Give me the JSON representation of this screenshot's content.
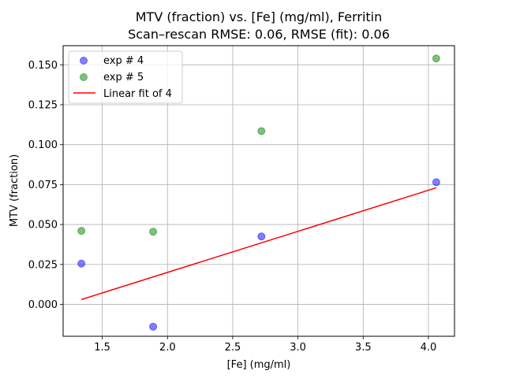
{
  "chart_data": {
    "type": "scatter",
    "title_line1": "MTV (fraction) vs. [Fe] (mg/ml), Ferritin",
    "title_line2": "Scan–rescan RMSE: 0.06, RMSE (fit): 0.06",
    "xlabel": "[Fe] (mg/ml)",
    "ylabel": "MTV (fraction)",
    "xlim": [
      1.2,
      4.2
    ],
    "ylim": [
      -0.02,
      0.162
    ],
    "xticks": [
      1.5,
      2.0,
      2.5,
      3.0,
      3.5,
      4.0
    ],
    "xtick_labels": [
      "1.5",
      "2.0",
      "2.5",
      "3.0",
      "3.5",
      "4.0"
    ],
    "yticks": [
      0.0,
      0.025,
      0.05,
      0.075,
      0.1,
      0.125,
      0.15
    ],
    "ytick_labels": [
      "0.000",
      "0.025",
      "0.050",
      "0.075",
      "0.100",
      "0.125",
      "0.150"
    ],
    "grid": true,
    "legend_position": "top-left",
    "series": [
      {
        "name": "exp # 4",
        "kind": "scatter",
        "color": "#0000ff",
        "x": [
          1.34,
          1.89,
          2.72,
          4.06
        ],
        "y": [
          0.0255,
          -0.014,
          0.0425,
          0.0765
        ]
      },
      {
        "name": "exp # 5",
        "kind": "scatter",
        "color": "#008000",
        "x": [
          1.34,
          1.89,
          2.72,
          4.06
        ],
        "y": [
          0.046,
          0.0455,
          0.1085,
          0.154
        ]
      },
      {
        "name": "Linear fit of 4",
        "kind": "line",
        "color": "#ff0000",
        "x": [
          1.34,
          4.06
        ],
        "y": [
          0.003,
          0.073
        ]
      }
    ]
  }
}
